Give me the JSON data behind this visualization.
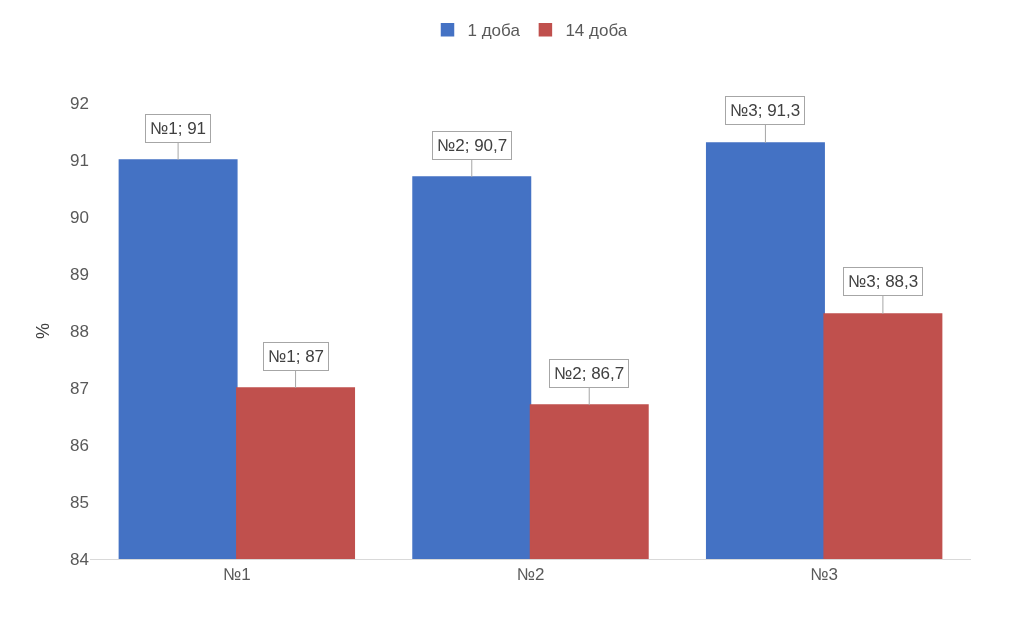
{
  "chart_data": {
    "type": "bar",
    "ylabel": "%",
    "categories": [
      "№1",
      "№2",
      "№3"
    ],
    "series": [
      {
        "name": "1 доба",
        "color": "#4472c4",
        "values": [
          91,
          90.7,
          91.3
        ],
        "value_labels": [
          "№1; 91",
          "№2; 90,7",
          "№3; 91,3"
        ]
      },
      {
        "name": "14 доба",
        "color": "#c0504d",
        "values": [
          87,
          86.7,
          88.3
        ],
        "value_labels": [
          "№1; 87",
          "№2; 86,7",
          "№3; 88,3"
        ]
      }
    ],
    "ylim": [
      84,
      92
    ],
    "yticks": [
      84,
      85,
      86,
      87,
      88,
      89,
      90,
      91,
      92
    ],
    "grid": false,
    "legend": "top"
  }
}
